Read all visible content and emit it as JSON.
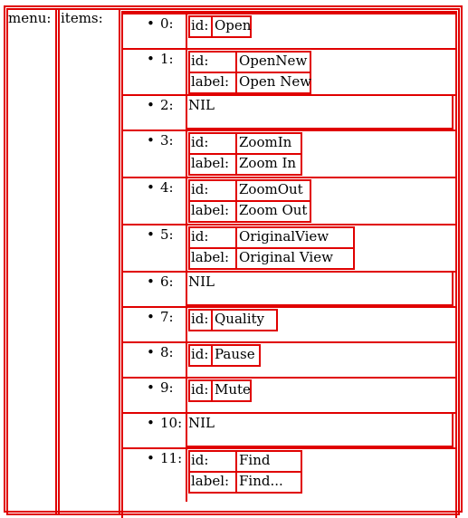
{
  "menu": {
    "label": "menu:",
    "items_label": "items:",
    "items": [
      {
        "index": "0:",
        "kind": "kv",
        "fields": [
          {
            "key": "id:",
            "value": "Open"
          }
        ]
      },
      {
        "index": "1:",
        "kind": "kv",
        "fields": [
          {
            "key": "id:",
            "value": "OpenNew"
          },
          {
            "key": "label:",
            "value": "Open New"
          }
        ]
      },
      {
        "index": "2:",
        "kind": "nil",
        "text": "NIL"
      },
      {
        "index": "3:",
        "kind": "kv",
        "fields": [
          {
            "key": "id:",
            "value": "ZoomIn"
          },
          {
            "key": "label:",
            "value": "Zoom In"
          }
        ]
      },
      {
        "index": "4:",
        "kind": "kv",
        "fields": [
          {
            "key": "id:",
            "value": "ZoomOut"
          },
          {
            "key": "label:",
            "value": "Zoom Out"
          }
        ]
      },
      {
        "index": "5:",
        "kind": "kv",
        "fields": [
          {
            "key": "id:",
            "value": "OriginalView"
          },
          {
            "key": "label:",
            "value": "Original View"
          }
        ]
      },
      {
        "index": "6:",
        "kind": "nil",
        "text": "NIL"
      },
      {
        "index": "7:",
        "kind": "kv",
        "fields": [
          {
            "key": "id:",
            "value": "Quality"
          }
        ]
      },
      {
        "index": "8:",
        "kind": "kv",
        "fields": [
          {
            "key": "id:",
            "value": "Pause"
          }
        ]
      },
      {
        "index": "9:",
        "kind": "kv",
        "fields": [
          {
            "key": "id:",
            "value": "Mute"
          }
        ]
      },
      {
        "index": "10:",
        "kind": "nil",
        "text": "NIL"
      },
      {
        "index": "11:",
        "kind": "kv",
        "fields": [
          {
            "key": "id:",
            "value": "Find"
          },
          {
            "key": "label:",
            "value": "Find..."
          }
        ]
      }
    ]
  }
}
